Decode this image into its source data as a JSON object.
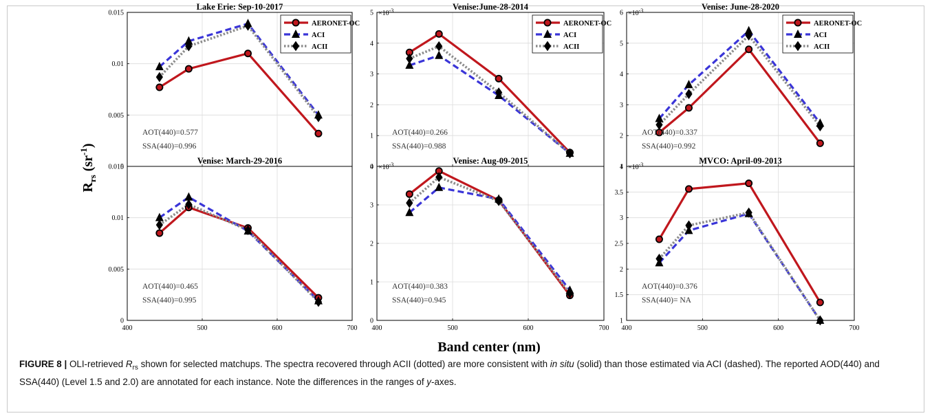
{
  "figure": {
    "ylabel_main": "R",
    "ylabel_sub": "rs",
    "ylabel_unit_open": " (sr",
    "ylabel_unit_sup": "-1",
    "ylabel_unit_close": ")",
    "xlabel_main": "Band center (nm)"
  },
  "caption": {
    "label": "FIGURE 8 |",
    "t1": " OLI-retrieved ",
    "t1_var": "R",
    "t1_sub": "rs",
    "t2": " shown for selected matchups. The spectra recovered through ACII (dotted) are more consistent with ",
    "t2_it": "in situ",
    "t3": " (solid) than those estimated via ACI (dashed). The reported AOD(440) and SSA(440) (Level 1.5 and 2.0) are annotated for each instance. Note the differences in the ranges of ",
    "t3_it": "y",
    "t4": "-axes."
  },
  "colors": {
    "aeronet": "#c0171d",
    "aci": "#3a35d8",
    "acii": "#8c8c8c"
  },
  "chart_data": [
    {
      "type": "line",
      "title": "Lake Erie: Sep-10-2017",
      "x": [
        443,
        482,
        561,
        655
      ],
      "xlim": [
        400,
        700
      ],
      "xticks": [
        400,
        500,
        600,
        700
      ],
      "xticklabels": [
        "",
        "",
        "",
        ""
      ],
      "ylim": [
        0,
        0.015
      ],
      "yticks": [
        0,
        0.005,
        0.01,
        0.015
      ],
      "yticklabels": [
        "0",
        "0.005",
        "0.01",
        "0.015"
      ],
      "yexponent": "",
      "legend": "top-right",
      "aot": "AOT(440)=0.577",
      "ssa": "SSA(440)=0.996",
      "series": [
        {
          "name": "AERONET-OC",
          "values": [
            0.0077,
            0.0095,
            0.011,
            0.0032
          ]
        },
        {
          "name": "ACI",
          "values": [
            0.0097,
            0.0122,
            0.0139,
            0.005
          ]
        },
        {
          "name": "ACII",
          "values": [
            0.0087,
            0.0117,
            0.0137,
            0.0048
          ]
        }
      ]
    },
    {
      "type": "line",
      "title": "Venise:June-28-2014",
      "x": [
        443,
        482,
        561,
        655
      ],
      "xlim": [
        400,
        700
      ],
      "xticks": [
        400,
        500,
        600,
        700
      ],
      "xticklabels": [
        "",
        "",
        "",
        ""
      ],
      "ylim": [
        0,
        5
      ],
      "yticks": [
        0,
        1,
        2,
        3,
        4,
        5
      ],
      "yticklabels": [
        "0",
        "1",
        "2",
        "3",
        "4",
        "5"
      ],
      "yexponent": "×10",
      "yexponent_sup": "-3",
      "legend": "top-right",
      "aot": "AOT(440)=0.266",
      "ssa": "SSA(440)=0.988",
      "series": [
        {
          "name": "AERONET-OC",
          "values": [
            3.7,
            4.3,
            2.85,
            0.45
          ]
        },
        {
          "name": "ACI",
          "values": [
            3.28,
            3.6,
            2.3,
            0.42
          ]
        },
        {
          "name": "ACII",
          "values": [
            3.5,
            3.9,
            2.4,
            0.42
          ]
        }
      ]
    },
    {
      "type": "line",
      "title": "Venise: June-28-2020",
      "x": [
        443,
        482,
        561,
        655
      ],
      "xlim": [
        400,
        700
      ],
      "xticks": [
        400,
        500,
        600,
        700
      ],
      "xticklabels": [
        "",
        "",
        "",
        ""
      ],
      "ylim": [
        1,
        6
      ],
      "yticks": [
        1,
        2,
        3,
        4,
        5,
        6
      ],
      "yticklabels": [
        "1",
        "2",
        "3",
        "4",
        "5",
        "6"
      ],
      "yexponent": "×10",
      "yexponent_sup": "-3",
      "legend": "top-right",
      "aot": "AOT(440)=0.337",
      "ssa": "SSA(440)=0.992",
      "series": [
        {
          "name": "AERONET-OC",
          "values": [
            2.1,
            2.9,
            4.8,
            1.75
          ]
        },
        {
          "name": "ACI",
          "values": [
            2.55,
            3.65,
            5.4,
            2.4
          ]
        },
        {
          "name": "ACII",
          "values": [
            2.35,
            3.35,
            5.25,
            2.3
          ]
        }
      ]
    },
    {
      "type": "line",
      "title": "Venise: March-29-2016",
      "x": [
        443,
        482,
        561,
        655
      ],
      "xlim": [
        400,
        700
      ],
      "xticks": [
        400,
        500,
        600,
        700
      ],
      "xticklabels": [
        "400",
        "500",
        "600",
        "700"
      ],
      "ylim": [
        0,
        0.015
      ],
      "yticks": [
        0,
        0.005,
        0.01,
        0.015
      ],
      "yticklabels": [
        "0",
        "0.005",
        "0.01",
        "0.015"
      ],
      "yexponent": "",
      "legend": "none",
      "aot": "AOT(440)=0.465",
      "ssa": "SSA(440)=0.995",
      "series": [
        {
          "name": "AERONET-OC",
          "values": [
            0.0085,
            0.011,
            0.009,
            0.0022
          ]
        },
        {
          "name": "ACI",
          "values": [
            0.01,
            0.012,
            0.0087,
            0.0019
          ]
        },
        {
          "name": "ACII",
          "values": [
            0.0093,
            0.0113,
            0.0088,
            0.0018
          ]
        }
      ]
    },
    {
      "type": "line",
      "title": "Venise: Aug-09-2015",
      "x": [
        443,
        482,
        561,
        655
      ],
      "xlim": [
        400,
        700
      ],
      "xticks": [
        400,
        500,
        600,
        700
      ],
      "xticklabels": [
        "400",
        "500",
        "600",
        "700"
      ],
      "ylim": [
        0,
        4
      ],
      "yticks": [
        0,
        1,
        2,
        3,
        4
      ],
      "yticklabels": [
        "0",
        "1",
        "2",
        "3",
        "4"
      ],
      "yexponent": "×10",
      "yexponent_sup": "-3",
      "legend": "none",
      "aot": "AOT(440)=0.383",
      "ssa": "SSA(440)=0.945",
      "series": [
        {
          "name": "AERONET-OC",
          "values": [
            3.28,
            3.88,
            3.12,
            0.65
          ]
        },
        {
          "name": "ACI",
          "values": [
            2.8,
            3.45,
            3.15,
            0.78
          ]
        },
        {
          "name": "ACII",
          "values": [
            3.05,
            3.72,
            3.1,
            0.7
          ]
        }
      ]
    },
    {
      "type": "line",
      "title": "MVCO: April-09-2013",
      "x": [
        443,
        482,
        561,
        655
      ],
      "xlim": [
        400,
        700
      ],
      "xticks": [
        400,
        500,
        600,
        700
      ],
      "xticklabels": [
        "400",
        "500",
        "600",
        "700"
      ],
      "ylim": [
        1,
        4
      ],
      "yticks": [
        1,
        1.5,
        2,
        2.5,
        3,
        3.5,
        4
      ],
      "yticklabels": [
        "1",
        "1.5",
        "2",
        "2.5",
        "3",
        "3.5",
        "4"
      ],
      "yexponent": "×10",
      "yexponent_sup": "-3",
      "legend": "none",
      "aot": "AOT(440)=0.376",
      "ssa": "SSA(440)= NA",
      "series": [
        {
          "name": "AERONET-OC",
          "values": [
            2.58,
            3.56,
            3.67,
            1.35
          ]
        },
        {
          "name": "ACI",
          "values": [
            2.12,
            2.75,
            3.08,
            1.0
          ]
        },
        {
          "name": "ACII",
          "values": [
            2.2,
            2.85,
            3.1,
            1.0
          ]
        }
      ]
    }
  ]
}
